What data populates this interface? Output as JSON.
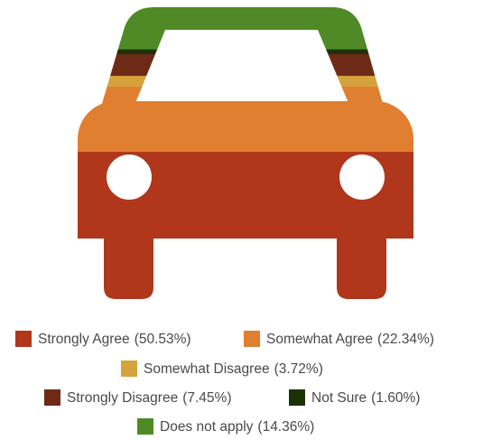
{
  "chart_data": {
    "type": "pictorial-stack",
    "categories": [
      "Strongly Agree",
      "Somewhat Agree",
      "Somewhat Disagree",
      "Strongly Disagree",
      "Not Sure",
      "Does not apply"
    ],
    "values": [
      50.53,
      22.34,
      3.72,
      7.45,
      1.6,
      14.36
    ],
    "value_labels": [
      "(50.53%)",
      "(22.34%)",
      "(3.72%)",
      "(7.45%)",
      "(1.60%)",
      "(14.36%)"
    ],
    "colors": [
      "#b0361c",
      "#e07f2f",
      "#d6a23b",
      "#6d2a17",
      "#1b3207",
      "#4f8a26"
    ]
  }
}
